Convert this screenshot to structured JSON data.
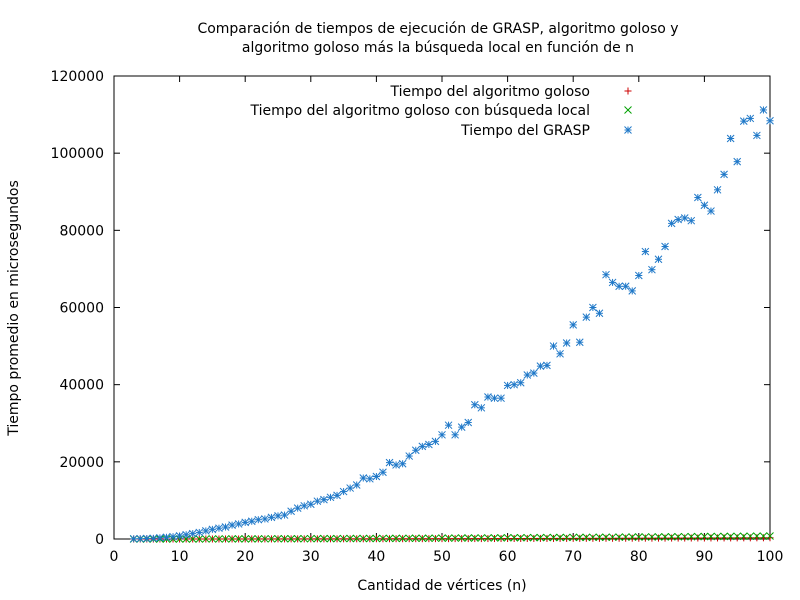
{
  "chart_data": {
    "type": "scatter",
    "title_lines": [
      "Comparación de tiempos de ejecución de GRASP, algoritmo goloso y",
      "algoritmo goloso más la búsqueda local en función de n"
    ],
    "xlabel": "Cantidad de vértices (n)",
    "ylabel": "Tiempo promedio en microsegundos",
    "xlim": [
      0,
      100
    ],
    "ylim": [
      0,
      120000
    ],
    "xticks": [
      0,
      10,
      20,
      30,
      40,
      50,
      60,
      70,
      80,
      90,
      100
    ],
    "yticks": [
      0,
      20000,
      40000,
      60000,
      80000,
      100000,
      120000
    ],
    "legend_position": "top-right",
    "grid": false,
    "series": [
      {
        "name": "Tiempo del algoritmo goloso",
        "marker": "plus",
        "color": "#cc0000",
        "x": [
          3,
          4,
          5,
          6,
          7,
          8,
          9,
          10,
          11,
          12,
          13,
          14,
          15,
          16,
          17,
          18,
          19,
          20,
          21,
          22,
          23,
          24,
          25,
          26,
          27,
          28,
          29,
          30,
          31,
          32,
          33,
          34,
          35,
          36,
          37,
          38,
          39,
          40,
          41,
          42,
          43,
          44,
          45,
          46,
          47,
          48,
          49,
          50,
          51,
          52,
          53,
          54,
          55,
          56,
          57,
          58,
          59,
          60,
          61,
          62,
          63,
          64,
          65,
          66,
          67,
          68,
          69,
          70,
          71,
          72,
          73,
          74,
          75,
          76,
          77,
          78,
          79,
          80,
          81,
          82,
          83,
          84,
          85,
          86,
          87,
          88,
          89,
          90,
          91,
          92,
          93,
          94,
          95,
          96,
          97,
          98,
          99,
          100
        ],
        "y": [
          0,
          0,
          0,
          0,
          0,
          0,
          0,
          0,
          0,
          0,
          0,
          0,
          0,
          0,
          10,
          10,
          10,
          10,
          20,
          20,
          20,
          20,
          20,
          30,
          30,
          30,
          30,
          30,
          40,
          40,
          40,
          40,
          50,
          50,
          50,
          50,
          60,
          60,
          60,
          60,
          70,
          70,
          70,
          80,
          80,
          80,
          90,
          90,
          90,
          100,
          100,
          100,
          110,
          110,
          110,
          120,
          120,
          130,
          130,
          130,
          140,
          140,
          150,
          150,
          150,
          160,
          160,
          170,
          170,
          180,
          180,
          180,
          190,
          190,
          200,
          200,
          210,
          210,
          220,
          220,
          230,
          230,
          240,
          240,
          250,
          250,
          260,
          260,
          270,
          270,
          280,
          280,
          290,
          300,
          300,
          310,
          310,
          320
        ]
      },
      {
        "name": "Tiempo del algoritmo goloso con búsqueda local",
        "marker": "cross",
        "color": "#00a000",
        "x": [
          3,
          4,
          5,
          6,
          7,
          8,
          9,
          10,
          11,
          12,
          13,
          14,
          15,
          16,
          17,
          18,
          19,
          20,
          21,
          22,
          23,
          24,
          25,
          26,
          27,
          28,
          29,
          30,
          31,
          32,
          33,
          34,
          35,
          36,
          37,
          38,
          39,
          40,
          41,
          42,
          43,
          44,
          45,
          46,
          47,
          48,
          49,
          50,
          51,
          52,
          53,
          54,
          55,
          56,
          57,
          58,
          59,
          60,
          61,
          62,
          63,
          64,
          65,
          66,
          67,
          68,
          69,
          70,
          71,
          72,
          73,
          74,
          75,
          76,
          77,
          78,
          79,
          80,
          81,
          82,
          83,
          84,
          85,
          86,
          87,
          88,
          89,
          90,
          91,
          92,
          93,
          94,
          95,
          96,
          97,
          98,
          99,
          100
        ],
        "y": [
          0,
          0,
          0,
          0,
          0,
          0,
          0,
          10,
          10,
          10,
          10,
          20,
          20,
          20,
          20,
          30,
          30,
          40,
          40,
          40,
          50,
          50,
          60,
          60,
          70,
          70,
          80,
          80,
          90,
          90,
          100,
          100,
          110,
          120,
          120,
          130,
          140,
          140,
          150,
          160,
          160,
          170,
          180,
          190,
          190,
          200,
          210,
          220,
          230,
          240,
          250,
          250,
          260,
          270,
          280,
          290,
          300,
          310,
          320,
          330,
          340,
          350,
          360,
          370,
          380,
          390,
          400,
          410,
          420,
          430,
          440,
          450,
          460,
          470,
          480,
          500,
          510,
          520,
          530,
          540,
          550,
          560,
          580,
          590,
          600,
          610,
          620,
          640,
          650,
          660,
          670,
          690,
          700,
          710,
          730,
          740,
          750,
          770
        ]
      },
      {
        "name": "Tiempo del GRASP",
        "marker": "star",
        "color": "#1f78c8",
        "x": [
          3,
          4,
          5,
          6,
          7,
          8,
          9,
          10,
          11,
          12,
          13,
          14,
          15,
          16,
          17,
          18,
          19,
          20,
          21,
          22,
          23,
          24,
          25,
          26,
          27,
          28,
          29,
          30,
          31,
          32,
          33,
          34,
          35,
          36,
          37,
          38,
          39,
          40,
          41,
          42,
          43,
          44,
          45,
          46,
          47,
          48,
          49,
          50,
          51,
          52,
          53,
          54,
          55,
          56,
          57,
          58,
          59,
          60,
          61,
          62,
          63,
          64,
          65,
          66,
          67,
          68,
          69,
          70,
          71,
          72,
          73,
          74,
          75,
          76,
          77,
          78,
          79,
          80,
          81,
          82,
          83,
          84,
          85,
          86,
          87,
          88,
          89,
          90,
          91,
          92,
          93,
          94,
          95,
          96,
          97,
          98,
          99,
          100
        ],
        "y": [
          50,
          80,
          120,
          180,
          300,
          450,
          600,
          800,
          1100,
          1400,
          1700,
          2100,
          2500,
          2800,
          3100,
          3600,
          3900,
          4300,
          4600,
          5000,
          5200,
          5600,
          6000,
          6200,
          7200,
          8000,
          8600,
          9000,
          9800,
          10200,
          10800,
          11300,
          12300,
          13200,
          14000,
          15800,
          15600,
          16200,
          17300,
          19800,
          19200,
          19500,
          21500,
          23000,
          24000,
          24500,
          25300,
          27000,
          29500,
          27000,
          29000,
          30200,
          34800,
          34000,
          36800,
          36500,
          36500,
          39800,
          40000,
          40500,
          42500,
          43000,
          44800,
          45000,
          50000,
          48000,
          50800,
          55500,
          51000,
          57500,
          60000,
          58500,
          68500,
          66500,
          65500,
          65500,
          64300,
          68300,
          74500,
          69800,
          72500,
          75800,
          81800,
          82800,
          83200,
          82500,
          88500,
          86500,
          85000,
          90500,
          94500,
          103800,
          97800,
          108300,
          109000,
          104600,
          111200,
          108400
        ]
      }
    ]
  }
}
